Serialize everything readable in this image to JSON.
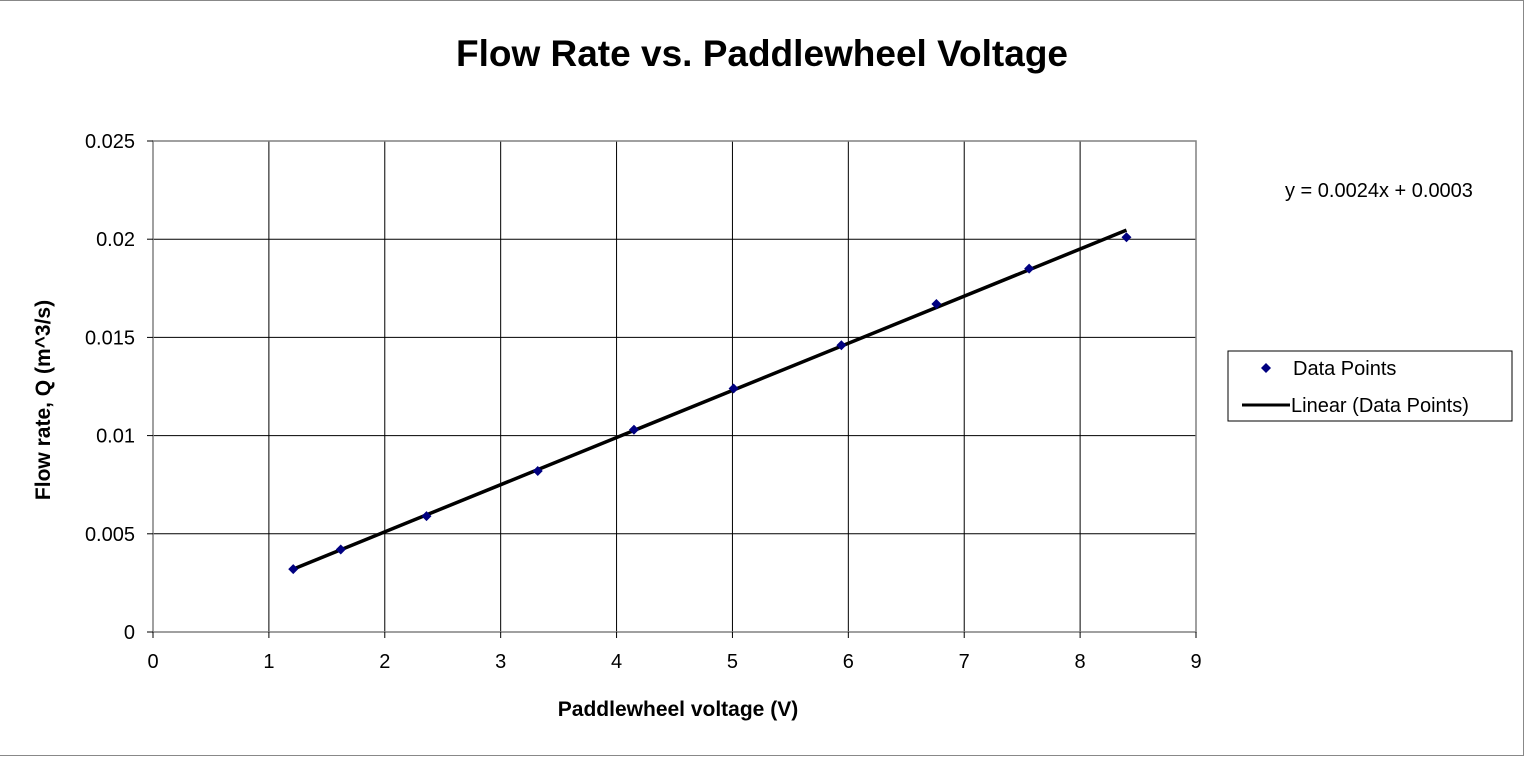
{
  "chart_data": {
    "type": "scatter",
    "title": "Flow Rate vs. Paddlewheel Voltage",
    "xlabel": "Paddlewheel voltage (V)",
    "ylabel": "Flow rate, Q (m^3/s)",
    "xlim": [
      0,
      9
    ],
    "ylim": [
      0,
      0.025
    ],
    "xticks": [
      "0",
      "1",
      "2",
      "3",
      "4",
      "5",
      "6",
      "7",
      "8",
      "9"
    ],
    "yticks": [
      "0",
      "0.005",
      "0.01",
      "0.015",
      "0.02",
      "0.025"
    ],
    "grid": true,
    "legend_position": "right",
    "series": [
      {
        "name": "Data Points",
        "color": "#000080",
        "marker": "diamond",
        "x": [
          1.21,
          1.62,
          2.36,
          3.32,
          4.15,
          5.01,
          5.94,
          6.76,
          7.56,
          8.4
        ],
        "y": [
          0.0032,
          0.0042,
          0.0059,
          0.0082,
          0.0103,
          0.0124,
          0.0146,
          0.0167,
          0.0185,
          0.0201
        ]
      }
    ],
    "trendline": {
      "name": "Linear (Data Points)",
      "color": "#000000",
      "slope": 0.0024,
      "intercept": 0.0003,
      "x_range": [
        1.21,
        8.4
      ],
      "equation": "y = 0.0024x + 0.0003"
    }
  }
}
